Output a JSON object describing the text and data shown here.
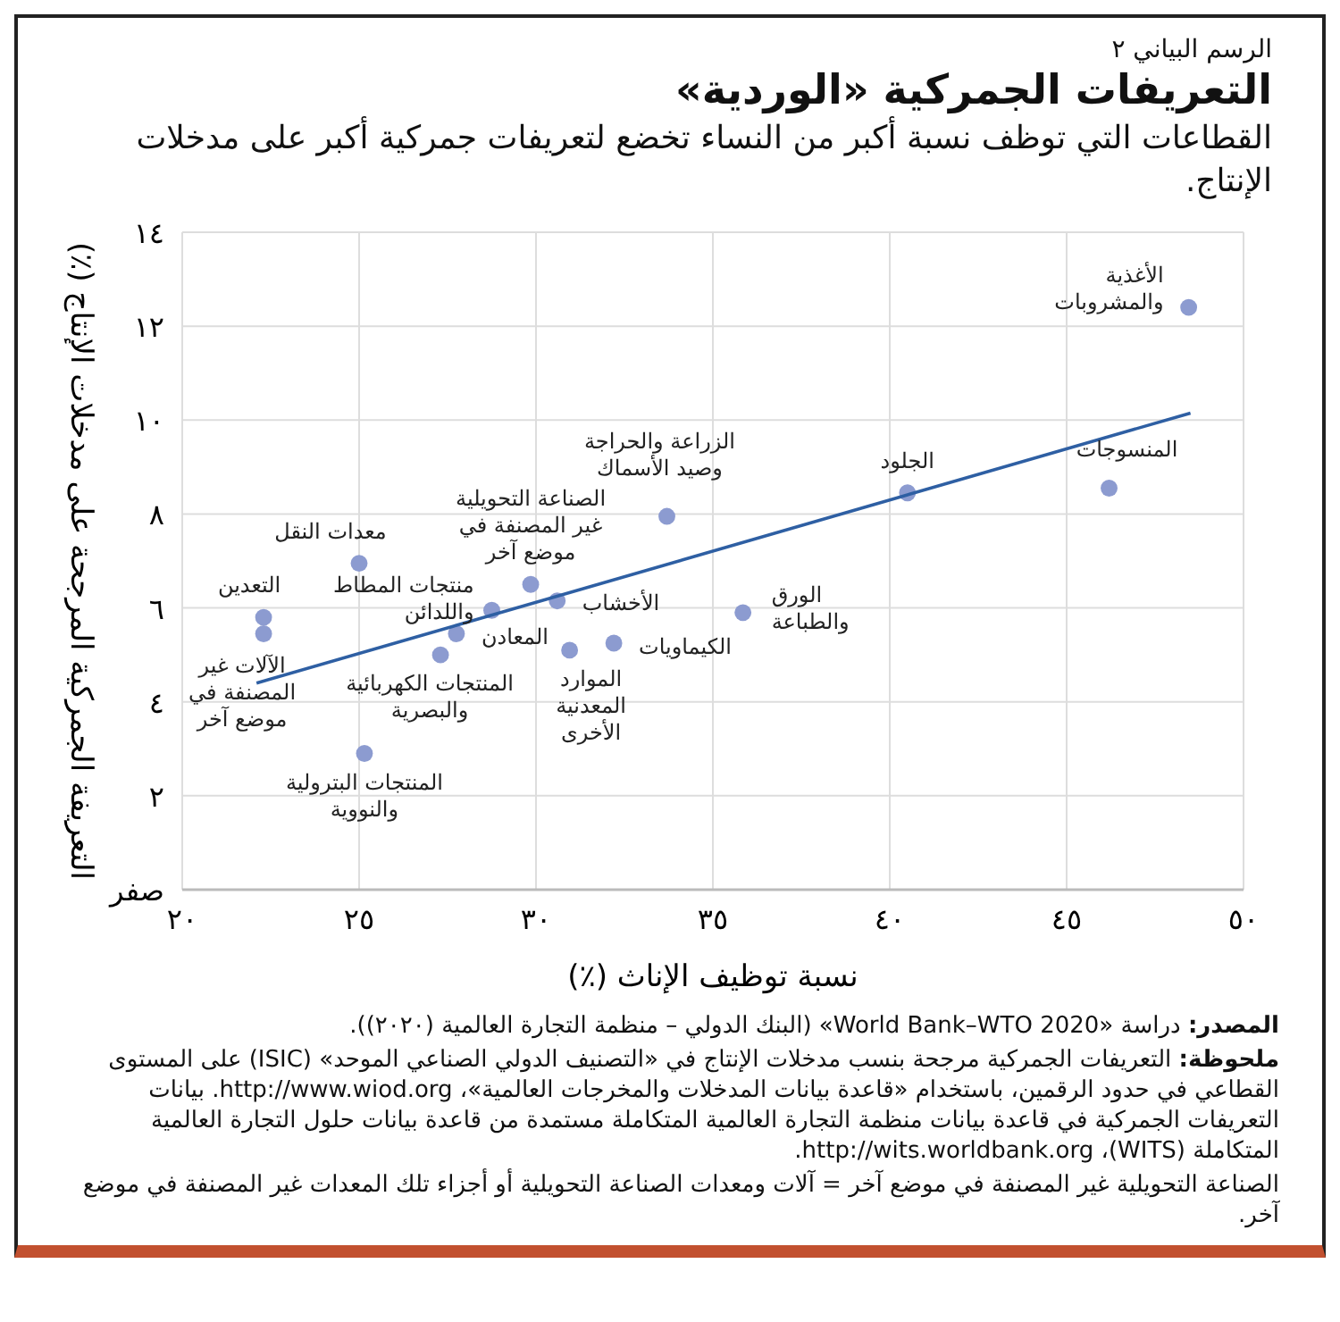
{
  "chart_data": {
    "type": "scatter",
    "title": "التعريفات الجمركية «الوردية»",
    "subtitle": "القطاعات التي توظف نسبة أكبر من النساء تخضع لتعريفات جمركية أكبر على مدخلات الإنتاج.",
    "xlabel": "نسبة توظيف الإناث (٪)",
    "ylabel": "التعريفة الجمركية المرجحة على مدخلات الإنتاج (٪)",
    "xlim": [
      20,
      50
    ],
    "xticks": [
      {
        "value": 20,
        "label": "٢٠"
      },
      {
        "value": 25,
        "label": "٢٥"
      },
      {
        "value": 30,
        "label": "٣٠"
      },
      {
        "value": 35,
        "label": "٣٥"
      },
      {
        "value": 40,
        "label": "٤٠"
      },
      {
        "value": 45,
        "label": "٤٥"
      },
      {
        "value": 50,
        "label": "٥٠"
      }
    ],
    "ylim": [
      0,
      14
    ],
    "yticks": [
      {
        "value": 0,
        "label": "صفر"
      },
      {
        "value": 2,
        "label": "٢"
      },
      {
        "value": 4,
        "label": "٤"
      },
      {
        "value": 6,
        "label": "٦"
      },
      {
        "value": 8,
        "label": "٨"
      },
      {
        "value": 10,
        "label": "١٠"
      },
      {
        "value": 12,
        "label": "١٢"
      },
      {
        "value": 14,
        "label": "١٤"
      }
    ],
    "grid": true,
    "series": [
      {
        "color": "#8c9bd0",
        "marker": "circle",
        "x": [
          22.3,
          22.3,
          25.0,
          28.75,
          29.85,
          30.6,
          27.75,
          27.3,
          25.15,
          30.95,
          32.2,
          35.85,
          33.7,
          40.5,
          46.2,
          48.45
        ],
        "values": [
          5.8,
          5.45,
          6.95,
          5.95,
          6.5,
          6.15,
          5.45,
          5.0,
          2.9,
          5.1,
          5.25,
          5.9,
          7.95,
          8.45,
          8.55,
          12.4
        ]
      },
      {
        "type": "line",
        "color": "#2e5fa3",
        "marker": "none",
        "x": [
          22.1,
          48.5
        ],
        "values": [
          4.4,
          10.15
        ]
      }
    ],
    "annotations": [
      "الرسم البياني ٢",
      {
        "text": "التعدين",
        "x": 22.3,
        "y": 5.8
      },
      {
        "text": "الآلات غير\nالمصنفة في\nموضع آخر",
        "x": 22.3,
        "y": 5.45
      },
      {
        "text": "معدات النقل",
        "x": 25.0,
        "y": 6.95
      },
      {
        "text": "منتجات المطاط\nواللدائن",
        "x": 28.75,
        "y": 5.95
      },
      {
        "text": "الصناعة التحويلية\nغير المصنفة في\nموضع آخر",
        "x": 29.85,
        "y": 6.5
      },
      {
        "text": "الأخشاب",
        "x": 30.6,
        "y": 6.15
      },
      {
        "text": "المعادن",
        "x": 27.75,
        "y": 5.45
      },
      {
        "text": "المنتجات الكهربائية\nوالبصرية",
        "x": 27.3,
        "y": 5.0
      },
      {
        "text": "المنتجات البترولية\nوالنووية",
        "x": 25.15,
        "y": 2.9
      },
      {
        "text": "الموارد\nالمعدنية\nالأخرى",
        "x": 30.95,
        "y": 5.1
      },
      {
        "text": "الكيماويات",
        "x": 32.2,
        "y": 5.25
      },
      {
        "text": "الورق\nوالطباعة",
        "x": 35.85,
        "y": 5.9
      },
      {
        "text": "الزراعة والحراجة\nوصيد الأسماك",
        "x": 33.7,
        "y": 7.95
      },
      {
        "text": "الجلود",
        "x": 40.5,
        "y": 8.45
      },
      {
        "text": "المنسوجات",
        "x": 46.2,
        "y": 8.55
      },
      {
        "text": "الأغذية\nوالمشروبات",
        "x": 48.45,
        "y": 12.4
      },
      "المصدر: دراسة «World Bank–WTO 2020» (البنك الدولي – منظمة التجارة العالمية (٢٠٢٠)).",
      "ملحوظة: التعريفات الجمركية مرجحة بنسب مدخلات الإنتاج في «التصنيف الدولي الصناعي الموحد» (ISIC) على المستوى القطاعي في حدود الرقمين، باستخدام «قاعدة بيانات المدخلات والمخرجات العالمية»، http://www.wiod.org. بيانات التعريفات الجمركية في قاعدة بيانات منظمة التجارة العالمية المتكاملة مستمدة من قاعدة بيانات حلول التجارة العالمية المتكاملة (WITS)، http://wits.worldbank.org.",
      "الصناعة التحويلية غير المصنفة في موضع آخر = آلات ومعدات الصناعة التحويلية أو أجزاء تلك المعدات غير المصنفة في موضع آخر."
    ]
  }
}
